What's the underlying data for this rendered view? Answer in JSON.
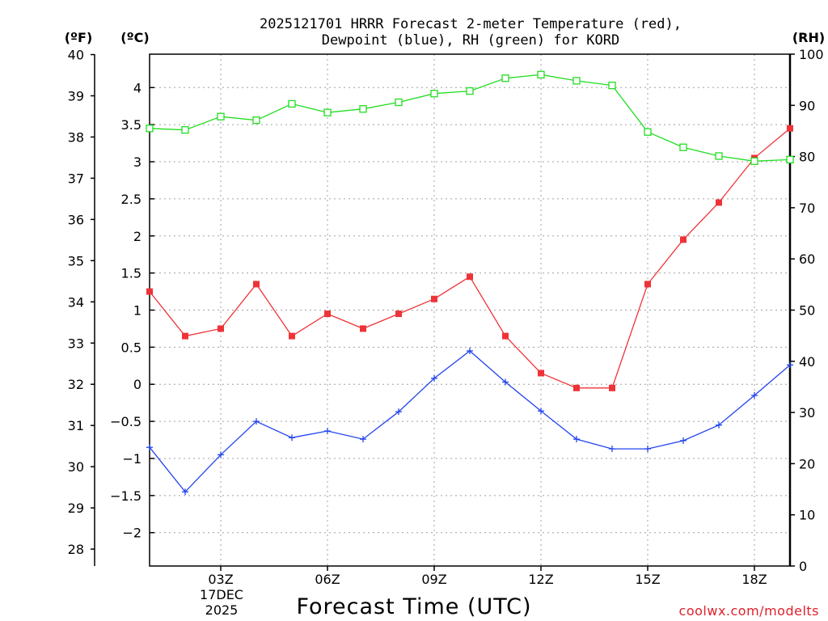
{
  "chart_data": {
    "type": "line",
    "title_line1": "2025121701 HRRR Forecast 2-meter Temperature (red),",
    "title_line2": "Dewpoint (blue), RH (green) for KORD",
    "left_unit_f": "(ºF)",
    "left_unit_c": "(ºC)",
    "right_unit": "(RH)",
    "xlabel": "Forecast Time (UTC)",
    "credit": "coolwx.com/modelts",
    "x_hours": [
      1,
      2,
      3,
      4,
      5,
      6,
      7,
      8,
      9,
      10,
      11,
      12,
      13,
      14,
      15,
      16,
      17,
      18,
      19
    ],
    "x_ticks": [
      {
        "hour": 3,
        "label": "03Z"
      },
      {
        "hour": 6,
        "label": "06Z"
      },
      {
        "hour": 9,
        "label": "09Z"
      },
      {
        "hour": 12,
        "label": "12Z"
      },
      {
        "hour": 15,
        "label": "15Z"
      },
      {
        "hour": 18,
        "label": "18Z"
      }
    ],
    "date_day": "17DEC",
    "date_year": "2025",
    "x_range": [
      1,
      19
    ],
    "c_range": [
      -2.45,
      4.45
    ],
    "rh_range": [
      0,
      100
    ],
    "c_ticks": [
      -2,
      -1.5,
      -1,
      -0.5,
      0,
      0.5,
      1,
      1.5,
      2,
      2.5,
      3,
      3.5,
      4
    ],
    "c_tick_labels": [
      "-2",
      "-1.5",
      "-1",
      "-0.5",
      "0",
      "0.5",
      "1",
      "1.5",
      "2",
      "2.5",
      "3",
      "3.5",
      "4"
    ],
    "f_ticks": [
      28,
      29,
      30,
      31,
      32,
      33,
      34,
      35,
      36,
      37,
      38,
      39,
      40
    ],
    "f_tick_labels": [
      "28",
      "29",
      "30",
      "31",
      "32",
      "33",
      "34",
      "35",
      "36",
      "37",
      "38",
      "39",
      "40"
    ],
    "rh_ticks": [
      0,
      10,
      20,
      30,
      40,
      50,
      60,
      70,
      80,
      90,
      100
    ],
    "rh_tick_labels": [
      "0",
      "10",
      "20",
      "30",
      "40",
      "50",
      "60",
      "70",
      "80",
      "90",
      "100"
    ],
    "series": [
      {
        "name": "Temperature",
        "axis": "c",
        "color": "#ee3338",
        "marker": "filled-square",
        "values": [
          1.25,
          0.65,
          0.75,
          1.35,
          0.65,
          0.95,
          0.75,
          0.95,
          1.15,
          1.45,
          0.65,
          0.15,
          -0.05,
          -0.05,
          1.35,
          1.95,
          2.45,
          3.05,
          3.45
        ]
      },
      {
        "name": "Dewpoint",
        "axis": "c",
        "color": "#2244ee",
        "marker": "plus",
        "values": [
          -0.85,
          -1.45,
          -0.95,
          -0.5,
          -0.72,
          -0.63,
          -0.74,
          -0.37,
          0.08,
          0.45,
          0.03,
          -0.36,
          -0.74,
          -0.87,
          -0.87,
          -0.76,
          -0.55,
          -0.15,
          0.26
        ]
      },
      {
        "name": "RH",
        "axis": "rh",
        "color": "#22dd22",
        "marker": "open-square",
        "values": [
          85.5,
          85.2,
          87.8,
          87.1,
          90.3,
          88.6,
          89.3,
          90.6,
          92.3,
          92.8,
          95.3,
          96.0,
          94.8,
          93.9,
          84.8,
          81.8,
          80.1,
          79.1,
          79.4
        ]
      }
    ]
  }
}
